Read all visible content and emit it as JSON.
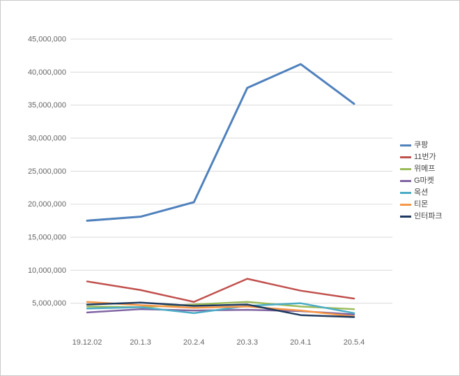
{
  "chart_data": {
    "type": "line",
    "title": "",
    "xlabel": "",
    "ylabel": "",
    "grid": true,
    "legend_position": "right",
    "ylim": [
      0,
      45000000
    ],
    "ytick_step": 5000000,
    "categories": [
      "19.12.02",
      "20.1.3",
      "20.2.4",
      "20.3.3",
      "20.4.1",
      "20.5.4"
    ],
    "yticks": [
      {
        "value": 5000000,
        "label": "5,000,000"
      },
      {
        "value": 10000000,
        "label": "10,000,000"
      },
      {
        "value": 15000000,
        "label": "15,000,000"
      },
      {
        "value": 20000000,
        "label": "20,000,000"
      },
      {
        "value": 25000000,
        "label": "25,000,000"
      },
      {
        "value": 30000000,
        "label": "30,000,000"
      },
      {
        "value": 35000000,
        "label": "35,000,000"
      },
      {
        "value": 40000000,
        "label": "40,000,000"
      },
      {
        "value": 45000000,
        "label": "45,000,000"
      }
    ],
    "series": [
      {
        "name": "쿠팡",
        "color": "#4F81BD",
        "width": 3,
        "values": [
          17500000,
          18100000,
          20300000,
          37600000,
          41200000,
          35200000
        ]
      },
      {
        "name": "11번가",
        "color": "#C0504D",
        "width": 2.5,
        "values": [
          8300000,
          7000000,
          5200000,
          8700000,
          6900000,
          5700000
        ]
      },
      {
        "name": "위메프",
        "color": "#9BBB59",
        "width": 2.5,
        "values": [
          4500000,
          4400000,
          4800000,
          5200000,
          4500000,
          4100000
        ]
      },
      {
        "name": "G마켓",
        "color": "#8064A2",
        "width": 2.5,
        "values": [
          3600000,
          4100000,
          3900000,
          4000000,
          3800000,
          3300000
        ]
      },
      {
        "name": "옥션",
        "color": "#4BACC6",
        "width": 2.5,
        "values": [
          4200000,
          4400000,
          3500000,
          4600000,
          5000000,
          3500000
        ]
      },
      {
        "name": "티몬",
        "color": "#F79646",
        "width": 2.5,
        "values": [
          5200000,
          4700000,
          4300000,
          4500000,
          3900000,
          3000000
        ]
      },
      {
        "name": "인터파크",
        "color": "#1F3A5F",
        "width": 2.5,
        "values": [
          4800000,
          5100000,
          4600000,
          4800000,
          3200000,
          2900000
        ]
      }
    ]
  }
}
